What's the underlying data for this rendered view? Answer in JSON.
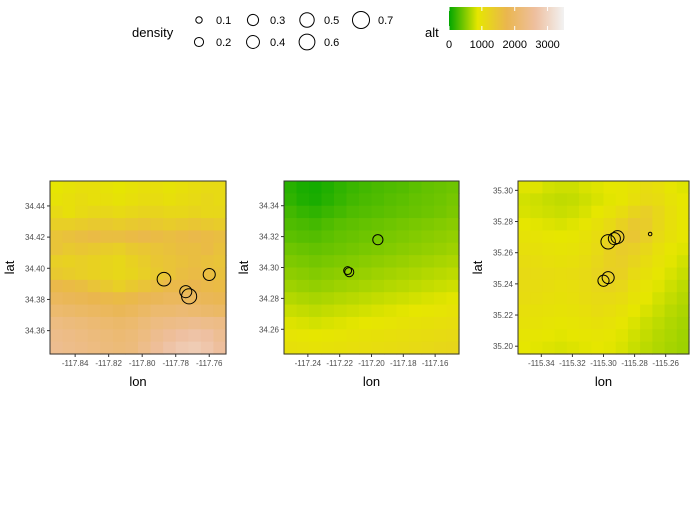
{
  "legend": {
    "density_title": "density",
    "density_levels": [
      {
        "label": "0.1",
        "value": 0.1
      },
      {
        "label": "0.2",
        "value": 0.2
      },
      {
        "label": "0.3",
        "value": 0.3
      },
      {
        "label": "0.4",
        "value": 0.4
      },
      {
        "label": "0.5",
        "value": 0.5
      },
      {
        "label": "0.6",
        "value": 0.6
      },
      {
        "label": "0.7",
        "value": 0.7
      }
    ],
    "alt_title": "alt",
    "alt_ticks": [
      {
        "label": "0",
        "value": 0
      },
      {
        "label": "1000",
        "value": 1000
      },
      {
        "label": "2000",
        "value": 2000
      },
      {
        "label": "3000",
        "value": 3000
      }
    ],
    "alt_range": [
      0,
      3500
    ],
    "alt_colors": [
      "#00a600",
      "#e6e600",
      "#eab64e",
      "#eebf9f",
      "#f2f2f2"
    ]
  },
  "chart_data": [
    {
      "type": "heatmap",
      "xlabel": "lon",
      "ylabel": "lat",
      "xlim": [
        -117.855,
        -117.75
      ],
      "ylim": [
        34.345,
        34.456
      ],
      "xticks": [
        {
          "label": "-117.84",
          "value": -117.84
        },
        {
          "label": "-117.82",
          "value": -117.82
        },
        {
          "label": "-117.80",
          "value": -117.8
        },
        {
          "label": "-117.78",
          "value": -117.78
        },
        {
          "label": "-117.76",
          "value": -117.76
        }
      ],
      "yticks": [
        {
          "label": "34.36",
          "value": 34.36
        },
        {
          "label": "34.38",
          "value": 34.38
        },
        {
          "label": "34.40",
          "value": 34.4
        },
        {
          "label": "34.42",
          "value": 34.42
        },
        {
          "label": "34.44",
          "value": 34.44
        }
      ],
      "alt_grid": {
        "nx": 14,
        "ny": 14,
        "rows_top_to_bottom": [
          [
            900,
            950,
            1000,
            1000,
            950,
            900,
            950,
            1000,
            1000,
            950,
            1000,
            1050,
            1100,
            1100
          ],
          [
            950,
            1000,
            1050,
            1000,
            1000,
            950,
            1000,
            1050,
            1050,
            1000,
            1050,
            1100,
            1150,
            1100
          ],
          [
            1100,
            1000,
            1100,
            1150,
            1150,
            1100,
            1150,
            1200,
            1200,
            1150,
            1150,
            1200,
            1150,
            1150
          ],
          [
            1300,
            1300,
            1350,
            1400,
            1400,
            1350,
            1400,
            1450,
            1400,
            1350,
            1400,
            1450,
            1400,
            1350
          ],
          [
            1500,
            1550,
            1600,
            1650,
            1600,
            1600,
            1650,
            1700,
            1650,
            1600,
            1650,
            1700,
            1650,
            1600
          ],
          [
            1500,
            1400,
            1450,
            1400,
            1350,
            1300,
            1400,
            1450,
            1500,
            1550,
            1600,
            1600,
            1650,
            1550
          ],
          [
            1300,
            1250,
            1300,
            1250,
            1200,
            1150,
            1250,
            1350,
            1450,
            1500,
            1550,
            1600,
            1550,
            1500
          ],
          [
            1400,
            1350,
            1300,
            1250,
            1200,
            1150,
            1200,
            1300,
            1400,
            1500,
            1600,
            1650,
            1600,
            1550
          ],
          [
            1700,
            1650,
            1600,
            1500,
            1400,
            1300,
            1400,
            1500,
            1600,
            1700,
            1700,
            1750,
            1700,
            1650
          ],
          [
            1900,
            1850,
            1800,
            1750,
            1700,
            1650,
            1700,
            1800,
            1850,
            1900,
            1900,
            1900,
            1850,
            1800
          ],
          [
            2100,
            2050,
            2000,
            1950,
            1900,
            1850,
            1900,
            2000,
            2100,
            2100,
            2150,
            2100,
            2050,
            2000
          ],
          [
            2300,
            2250,
            2200,
            2150,
            2100,
            2050,
            2100,
            2200,
            2300,
            2350,
            2400,
            2450,
            2400,
            2350
          ],
          [
            2400,
            2350,
            2300,
            2250,
            2200,
            2150,
            2200,
            2300,
            2450,
            2550,
            2650,
            2700,
            2650,
            2500
          ],
          [
            2450,
            2400,
            2350,
            2300,
            2250,
            2200,
            2250,
            2400,
            2550,
            2700,
            2800,
            2850,
            2750,
            2600
          ]
        ]
      },
      "points": [
        {
          "lon": -117.787,
          "lat": 34.393,
          "density": 0.45
        },
        {
          "lon": -117.774,
          "lat": 34.385,
          "density": 0.35
        },
        {
          "lon": -117.772,
          "lat": 34.382,
          "density": 0.55
        },
        {
          "lon": -117.76,
          "lat": 34.396,
          "density": 0.35
        }
      ]
    },
    {
      "type": "heatmap",
      "xlabel": "lon",
      "ylabel": "lat",
      "xlim": [
        -117.255,
        -117.145
      ],
      "ylim": [
        34.244,
        34.356
      ],
      "xticks": [
        {
          "label": "-117.24",
          "value": -117.24
        },
        {
          "label": "-117.22",
          "value": -117.22
        },
        {
          "label": "-117.20",
          "value": -117.2
        },
        {
          "label": "-117.18",
          "value": -117.18
        },
        {
          "label": "-117.16",
          "value": -117.16
        }
      ],
      "yticks": [
        {
          "label": "34.26",
          "value": 34.26
        },
        {
          "label": "34.28",
          "value": 34.28
        },
        {
          "label": "34.30",
          "value": 34.3
        },
        {
          "label": "34.32",
          "value": 34.32
        },
        {
          "label": "34.34",
          "value": 34.34
        }
      ],
      "alt_grid": {
        "nx": 14,
        "ny": 14,
        "rows_top_to_bottom": [
          [
            150,
            100,
            80,
            120,
            180,
            220,
            250,
            280,
            300,
            320,
            350,
            380,
            400,
            420
          ],
          [
            180,
            120,
            100,
            150,
            200,
            250,
            280,
            300,
            330,
            350,
            380,
            400,
            420,
            450
          ],
          [
            250,
            200,
            180,
            220,
            260,
            300,
            320,
            340,
            360,
            380,
            400,
            420,
            440,
            470
          ],
          [
            300,
            280,
            260,
            300,
            340,
            360,
            380,
            400,
            420,
            440,
            460,
            480,
            500,
            520
          ],
          [
            350,
            330,
            320,
            350,
            380,
            400,
            420,
            440,
            460,
            480,
            500,
            520,
            540,
            560
          ],
          [
            420,
            400,
            380,
            400,
            420,
            440,
            460,
            480,
            500,
            520,
            540,
            560,
            580,
            600
          ],
          [
            480,
            460,
            440,
            460,
            480,
            500,
            520,
            540,
            560,
            580,
            600,
            620,
            640,
            660
          ],
          [
            540,
            520,
            500,
            520,
            540,
            560,
            580,
            600,
            620,
            640,
            660,
            680,
            700,
            720
          ],
          [
            600,
            580,
            560,
            580,
            600,
            620,
            640,
            660,
            680,
            700,
            720,
            740,
            760,
            780
          ],
          [
            680,
            660,
            640,
            660,
            680,
            700,
            720,
            740,
            760,
            780,
            800,
            820,
            840,
            860
          ],
          [
            760,
            740,
            720,
            740,
            760,
            780,
            800,
            820,
            840,
            860,
            880,
            900,
            920,
            940
          ],
          [
            840,
            820,
            800,
            820,
            840,
            860,
            880,
            900,
            920,
            940,
            960,
            980,
            1000,
            1020
          ],
          [
            920,
            900,
            880,
            900,
            920,
            940,
            960,
            980,
            1000,
            1020,
            1040,
            1060,
            1080,
            1100
          ],
          [
            980,
            960,
            940,
            960,
            980,
            1000,
            1020,
            1040,
            1060,
            1080,
            1100,
            1120,
            1140,
            1160
          ]
        ]
      },
      "points": [
        {
          "lon": -117.196,
          "lat": 34.318,
          "density": 0.25
        },
        {
          "lon": -117.215,
          "lat": 34.298,
          "density": 0.15
        },
        {
          "lon": -117.214,
          "lat": 34.297,
          "density": 0.2
        }
      ]
    },
    {
      "type": "heatmap",
      "xlabel": "lon",
      "ylabel": "lat",
      "xlim": [
        -115.355,
        -115.245
      ],
      "ylim": [
        35.195,
        35.306
      ],
      "xticks": [
        {
          "label": "-115.34",
          "value": -115.34
        },
        {
          "label": "-115.32",
          "value": -115.32
        },
        {
          "label": "-115.30",
          "value": -115.3
        },
        {
          "label": "-115.28",
          "value": -115.28
        },
        {
          "label": "-115.26",
          "value": -115.26
        }
      ],
      "yticks": [
        {
          "label": "35.20",
          "value": 35.2
        },
        {
          "label": "35.22",
          "value": 35.22
        },
        {
          "label": "35.24",
          "value": 35.24
        },
        {
          "label": "35.26",
          "value": 35.26
        },
        {
          "label": "35.28",
          "value": 35.28
        },
        {
          "label": "35.30",
          "value": 35.3
        }
      ],
      "alt_grid": {
        "nx": 14,
        "ny": 14,
        "rows_top_to_bottom": [
          [
            850,
            850,
            800,
            780,
            780,
            820,
            850,
            880,
            900,
            950,
            1050,
            1000,
            900,
            850
          ],
          [
            800,
            780,
            750,
            730,
            740,
            780,
            820,
            860,
            900,
            1000,
            1100,
            1050,
            950,
            880
          ],
          [
            820,
            800,
            780,
            760,
            780,
            820,
            880,
            950,
            1050,
            1200,
            1300,
            1150,
            1000,
            900
          ],
          [
            880,
            860,
            840,
            820,
            850,
            900,
            980,
            1100,
            1250,
            1400,
            1350,
            1150,
            1000,
            900
          ],
          [
            950,
            930,
            900,
            880,
            900,
            960,
            1050,
            1200,
            1400,
            1450,
            1300,
            1100,
            980,
            900
          ],
          [
            1000,
            980,
            950,
            930,
            950,
            1000,
            1100,
            1250,
            1350,
            1300,
            1150,
            1000,
            900,
            850
          ],
          [
            1050,
            1030,
            1000,
            980,
            1000,
            1050,
            1150,
            1250,
            1300,
            1200,
            1050,
            950,
            860,
            800
          ],
          [
            1100,
            1080,
            1050,
            1030,
            1050,
            1100,
            1200,
            1300,
            1250,
            1100,
            980,
            900,
            820,
            760
          ],
          [
            1080,
            1060,
            1030,
            1000,
            1020,
            1080,
            1150,
            1200,
            1150,
            1000,
            920,
            850,
            780,
            720
          ],
          [
            1050,
            1030,
            1000,
            980,
            1000,
            1050,
            1100,
            1100,
            1050,
            950,
            870,
            800,
            740,
            690
          ],
          [
            1000,
            980,
            960,
            940,
            960,
            1000,
            1050,
            1020,
            960,
            880,
            820,
            760,
            700,
            660
          ],
          [
            960,
            940,
            920,
            900,
            920,
            950,
            980,
            950,
            900,
            830,
            770,
            720,
            670,
            630
          ],
          [
            920,
            900,
            880,
            860,
            880,
            900,
            920,
            900,
            850,
            790,
            740,
            690,
            650,
            610
          ],
          [
            880,
            860,
            840,
            820,
            840,
            860,
            880,
            860,
            820,
            760,
            710,
            670,
            630,
            600
          ]
        ]
      },
      "points": [
        {
          "lon": -115.297,
          "lat": 35.267,
          "density": 0.5
        },
        {
          "lon": -115.293,
          "lat": 35.269,
          "density": 0.35
        },
        {
          "lon": -115.291,
          "lat": 35.27,
          "density": 0.4
        },
        {
          "lon": -115.3,
          "lat": 35.242,
          "density": 0.3
        },
        {
          "lon": -115.297,
          "lat": 35.244,
          "density": 0.35
        },
        {
          "lon": -115.27,
          "lat": 35.272,
          "density": 0.03
        }
      ]
    }
  ]
}
